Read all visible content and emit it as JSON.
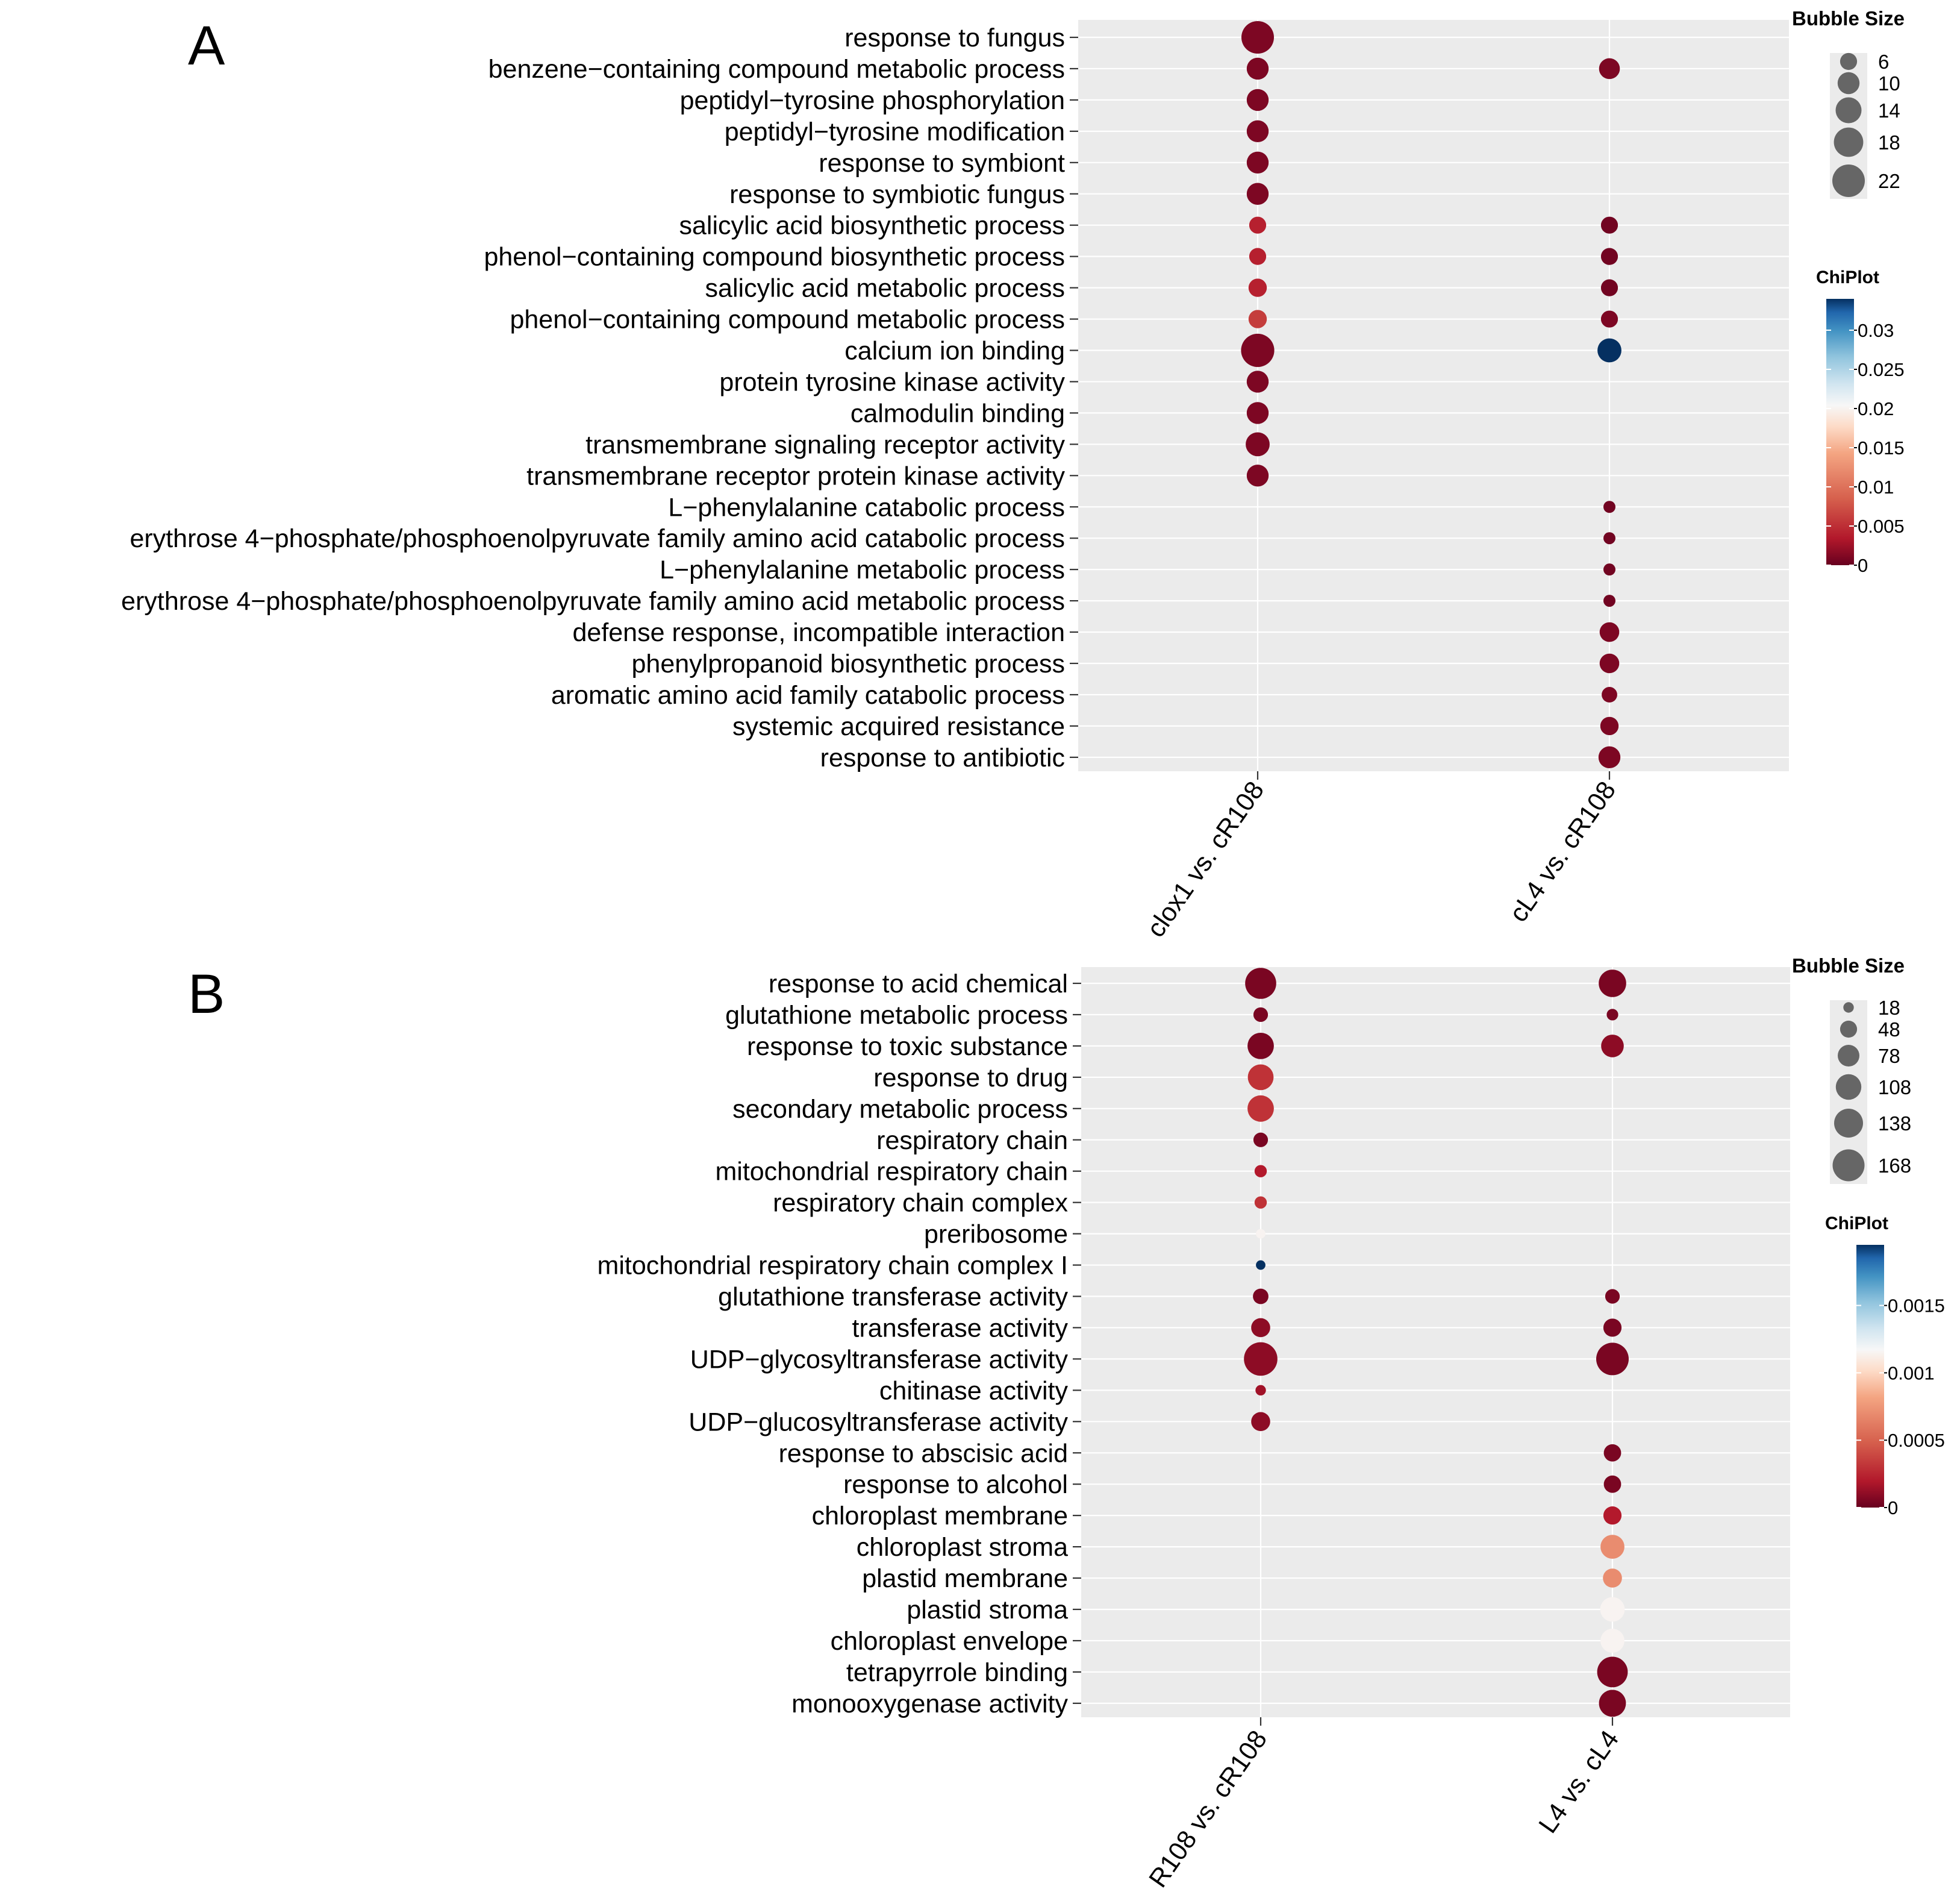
{
  "panel_labels": [
    "A",
    "B"
  ],
  "chart_data": [
    {
      "type": "bubble",
      "panel": "A",
      "categories": [
        "response to fungus",
        "benzene−containing compound metabolic process",
        "peptidyl−tyrosine phosphorylation",
        "peptidyl−tyrosine modification",
        "response to symbiont",
        "response to symbiotic fungus",
        "salicylic acid biosynthetic process",
        "phenol−containing compound biosynthetic process",
        "salicylic acid metabolic process",
        "phenol−containing compound metabolic process",
        "calcium ion binding",
        "protein tyrosine kinase activity",
        "calmodulin binding",
        "transmembrane signaling receptor activity",
        "transmembrane receptor protein kinase activity",
        "L−phenylalanine catabolic process",
        "erythrose 4−phosphate/phosphoenolpyruvate family amino acid catabolic process",
        "L−phenylalanine metabolic process",
        "erythrose 4−phosphate/phosphoenolpyruvate family amino acid metabolic process",
        "defense response, incompatible interaction",
        "phenylpropanoid biosynthetic process",
        "aromatic amino acid family catabolic process",
        "systemic acquired resistance",
        "response to antibiotic"
      ],
      "columns": [
        "clox1 vs. cR108",
        "cL4 vs. cR108"
      ],
      "series": [
        {
          "name": "clox1 vs. cR108",
          "size": [
            22,
            10,
            10,
            10,
            10,
            10,
            6,
            6,
            7,
            7,
            23,
            10,
            10,
            12,
            10,
            null,
            null,
            null,
            null,
            null,
            null,
            null,
            null,
            null
          ],
          "color_value": [
            0.001,
            0.001,
            0.001,
            0.001,
            0.001,
            0.001,
            0.004,
            0.004,
            0.004,
            0.006,
            0.001,
            0.001,
            0.001,
            0.001,
            0.001,
            null,
            null,
            null,
            null,
            null,
            null,
            null,
            null,
            null
          ]
        },
        {
          "name": "cL4 vs. cR108",
          "size": [
            null,
            9,
            null,
            null,
            null,
            null,
            6,
            6,
            6,
            6,
            12,
            null,
            null,
            null,
            null,
            3,
            3,
            3,
            3,
            8,
            8,
            5,
            7,
            10
          ],
          "color_value": [
            null,
            0.001,
            null,
            null,
            null,
            null,
            0.0005,
            0.0005,
            0.0005,
            0.001,
            0.034,
            null,
            null,
            null,
            null,
            0.0005,
            0.0005,
            0.0005,
            0.0005,
            0.001,
            0.001,
            0.001,
            0.001,
            0.001
          ]
        }
      ],
      "size_legend": {
        "title": "Bubble Size",
        "values": [
          6,
          10,
          14,
          18,
          22
        ],
        "labels": [
          "6",
          "10",
          "14",
          "18",
          "22"
        ]
      },
      "color_legend": {
        "title": "ChiPlot",
        "range": [
          0,
          0.034
        ],
        "ticks": [
          0.03,
          0.025,
          0.02,
          0.015,
          0.01,
          0.005,
          0
        ],
        "tick_labels": [
          "0.03",
          "0.025",
          "0.02",
          "0.015",
          "0.01",
          "0.005",
          "0"
        ]
      }
    },
    {
      "type": "bubble",
      "panel": "B",
      "categories": [
        "response to acid chemical",
        "glutathione metabolic process",
        "response to toxic substance",
        "response to drug",
        "secondary metabolic process",
        "respiratory chain",
        "mitochondrial respiratory chain",
        "respiratory chain complex",
        "preribosome",
        "mitochondrial respiratory chain complex I",
        "glutathione transferase activity",
        "transferase activity",
        "UDP−glycosyltransferase activity",
        "chitinase activity",
        "UDP−glucosyltransferase activity",
        "response to abscisic acid",
        "response to alcohol",
        "chloroplast membrane",
        "chloroplast stroma",
        "plastid membrane",
        "plastid stroma",
        "chloroplast envelope",
        "tetrapyrrole binding",
        "monooxygenase activity"
      ],
      "columns": [
        "R108 vs. cR108",
        "L4 vs. cL4"
      ],
      "series": [
        {
          "name": "R108 vs. cR108",
          "size": [
            160,
            35,
            115,
            110,
            115,
            35,
            25,
            25,
            15,
            15,
            40,
            60,
            185,
            18,
            60,
            null,
            null,
            null,
            null,
            null,
            null,
            null,
            null,
            null
          ],
          "color_value": [
            5e-05,
            5e-05,
            5e-05,
            0.0003,
            0.0003,
            5e-05,
            0.0002,
            0.0003,
            0.00115,
            0.002,
            5e-05,
            0.0001,
            0.0001,
            0.00015,
            0.0001,
            null,
            null,
            null,
            null,
            null,
            null,
            null,
            null,
            null
          ]
        },
        {
          "name": "L4 vs. cL4",
          "size": [
            125,
            22,
            85,
            null,
            null,
            null,
            null,
            null,
            null,
            null,
            35,
            55,
            175,
            null,
            null,
            50,
            50,
            55,
            95,
            60,
            100,
            95,
            155,
            120
          ],
          "color_value": [
            5e-05,
            5e-05,
            0.0001,
            null,
            null,
            null,
            null,
            null,
            null,
            null,
            5e-05,
            5e-05,
            5e-05,
            null,
            null,
            5e-05,
            5e-05,
            0.0002,
            0.0007,
            0.0007,
            0.00115,
            0.00115,
            5e-05,
            5e-05
          ]
        }
      ],
      "size_legend": {
        "title": "Bubble Size",
        "values": [
          18,
          48,
          78,
          108,
          138,
          168
        ],
        "labels": [
          "18",
          "48",
          "78",
          "108",
          "138",
          "168"
        ]
      },
      "color_legend": {
        "title": "ChiPlot",
        "range": [
          0,
          0.00195
        ],
        "ticks": [
          0.0015,
          0.001,
          0.0005,
          0
        ],
        "tick_labels": [
          "0.0015",
          "0.001",
          "0.0005",
          "0"
        ]
      }
    }
  ]
}
